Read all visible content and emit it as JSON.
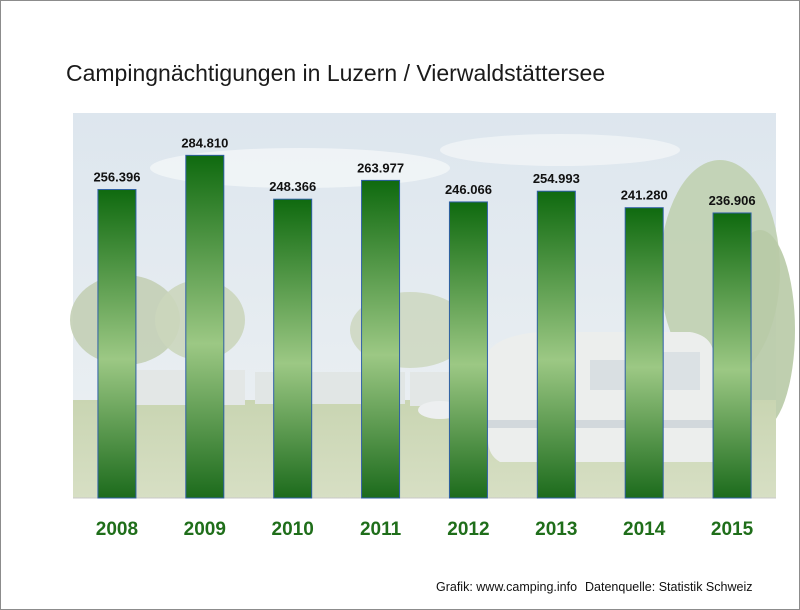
{
  "chart_data": {
    "type": "bar",
    "title": "Campingnächtigungen in Luzern / Vierwaldstättersee",
    "categories": [
      "2008",
      "2009",
      "2010",
      "2011",
      "2012",
      "2013",
      "2014",
      "2015"
    ],
    "values": [
      256396,
      284810,
      248366,
      263977,
      246066,
      254993,
      241280,
      236906
    ],
    "value_labels": [
      "256.396",
      "284.810",
      "248.366",
      "263.977",
      "246.066",
      "254.993",
      "241.280",
      "236.906"
    ],
    "xlabel": "",
    "ylabel": "",
    "ylim": [
      0,
      320000
    ],
    "grid": false,
    "legend": "none"
  },
  "colors": {
    "bar_top": "#0f6a0f",
    "bar_bottom": "#1c6b1c",
    "bar_middle": "#9cc884",
    "category_label": "#1f6e1a"
  },
  "footer": {
    "credit": "Grafik: www.camping.info",
    "source": "Datenquelle: Statistik Schweiz"
  }
}
